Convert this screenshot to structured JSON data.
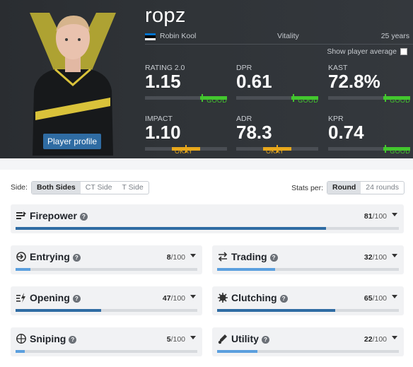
{
  "player": {
    "nickname": "ropz",
    "real_name": "Robin Kool",
    "team": "Vitality",
    "age": "25 years",
    "country_flag_colors": [
      "#0072ce",
      "#000000",
      "#ffffff"
    ],
    "profile_button": "Player profile",
    "show_average_label": "Show player average"
  },
  "stats": [
    {
      "label": "RATING 2.0",
      "value": "1.15",
      "grade": "GOOD"
    },
    {
      "label": "DPR",
      "value": "0.61",
      "grade": "GOOD"
    },
    {
      "label": "KAST",
      "value": "72.8%",
      "grade": "GOOD"
    },
    {
      "label": "IMPACT",
      "value": "1.10",
      "grade": "OKAY"
    },
    {
      "label": "ADR",
      "value": "78.3",
      "grade": "OKAY"
    },
    {
      "label": "KPR",
      "value": "0.74",
      "grade": "GOOD"
    }
  ],
  "filters": {
    "side_label": "Side:",
    "side_options": [
      "Both Sides",
      "CT Side",
      "T Side"
    ],
    "side_selected": "Both Sides",
    "per_label": "Stats per:",
    "per_options": [
      "Round",
      "24 rounds"
    ],
    "per_selected": "Round"
  },
  "categories": [
    {
      "name": "Firepower",
      "icon": "firepower-icon",
      "score": "81",
      "max": "/100",
      "fraction": 0.81,
      "bar_color": "#2f6ca3"
    },
    {
      "name": "Entrying",
      "icon": "entrying-icon",
      "score": "8",
      "max": "/100",
      "fraction": 0.08,
      "bar_color": "#5b9fde"
    },
    {
      "name": "Trading",
      "icon": "trading-icon",
      "score": "32",
      "max": "/100",
      "fraction": 0.32,
      "bar_color": "#5b9fde"
    },
    {
      "name": "Opening",
      "icon": "opening-icon",
      "score": "47",
      "max": "/100",
      "fraction": 0.47,
      "bar_color": "#2f6ca3"
    },
    {
      "name": "Clutching",
      "icon": "clutching-icon",
      "score": "65",
      "max": "/100",
      "fraction": 0.65,
      "bar_color": "#2f6ca3"
    },
    {
      "name": "Sniping",
      "icon": "sniping-icon",
      "score": "5",
      "max": "/100",
      "fraction": 0.05,
      "bar_color": "#5b9fde"
    },
    {
      "name": "Utility",
      "icon": "utility-icon",
      "score": "22",
      "max": "/100",
      "fraction": 0.22,
      "bar_color": "#5b9fde"
    }
  ],
  "help_glyph": "?"
}
